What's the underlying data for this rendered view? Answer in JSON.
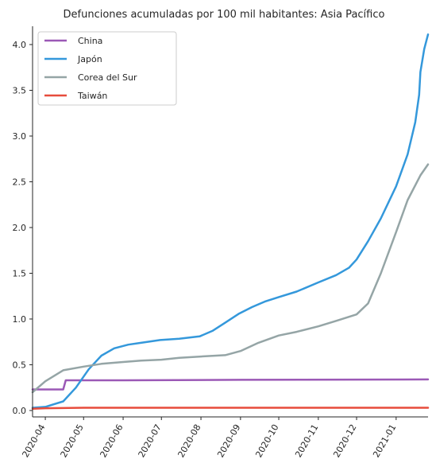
{
  "chart_data": {
    "type": "line",
    "title": "Defunciones acumuladas por 100 mil habitantes: Asia Pacífico",
    "xlabel": "",
    "ylabel": "",
    "x_ticks": [
      "2020-04",
      "2020-05",
      "2020-06",
      "2020-07",
      "2020-08",
      "2020-09",
      "2020-10",
      "2020-11",
      "2020-12",
      "2021-01"
    ],
    "x_range": [
      "2020-03-22",
      "2021-01-26"
    ],
    "y_ticks": [
      "0.0",
      "0.5",
      "1.0",
      "1.5",
      "2.0",
      "2.5",
      "3.0",
      "3.5",
      "4.0"
    ],
    "ylim": [
      -0.07,
      4.2
    ],
    "grid": false,
    "legend_position": "top-left",
    "series": [
      {
        "name": "China",
        "color": "#9b59b6",
        "points": [
          [
            "2020-03-22",
            0.23
          ],
          [
            "2020-04-15",
            0.23
          ],
          [
            "2020-04-17",
            0.33
          ],
          [
            "2020-06-01",
            0.33
          ],
          [
            "2020-09-01",
            0.335
          ],
          [
            "2020-12-01",
            0.338
          ],
          [
            "2021-01-26",
            0.34
          ]
        ]
      },
      {
        "name": "Japón",
        "color": "#3498db",
        "points": [
          [
            "2020-03-22",
            0.03
          ],
          [
            "2020-04-01",
            0.04
          ],
          [
            "2020-04-15",
            0.1
          ],
          [
            "2020-04-25",
            0.25
          ],
          [
            "2020-05-05",
            0.45
          ],
          [
            "2020-05-15",
            0.6
          ],
          [
            "2020-05-25",
            0.68
          ],
          [
            "2020-06-05",
            0.72
          ],
          [
            "2020-06-15",
            0.74
          ],
          [
            "2020-06-30",
            0.77
          ],
          [
            "2020-07-15",
            0.785
          ],
          [
            "2020-07-31",
            0.81
          ],
          [
            "2020-08-10",
            0.87
          ],
          [
            "2020-08-20",
            0.96
          ],
          [
            "2020-08-31",
            1.06
          ],
          [
            "2020-09-10",
            1.13
          ],
          [
            "2020-09-20",
            1.19
          ],
          [
            "2020-10-01",
            1.24
          ],
          [
            "2020-10-15",
            1.3
          ],
          [
            "2020-11-01",
            1.4
          ],
          [
            "2020-11-15",
            1.48
          ],
          [
            "2020-11-25",
            1.56
          ],
          [
            "2020-12-01",
            1.65
          ],
          [
            "2020-12-10",
            1.85
          ],
          [
            "2020-12-20",
            2.1
          ],
          [
            "2021-01-01",
            2.45
          ],
          [
            "2021-01-10",
            2.8
          ],
          [
            "2021-01-16",
            3.15
          ],
          [
            "2021-01-19",
            3.45
          ],
          [
            "2021-01-20",
            3.7
          ],
          [
            "2021-01-23",
            3.95
          ],
          [
            "2021-01-26",
            4.11
          ]
        ]
      },
      {
        "name": "Corea del Sur",
        "color": "#95a5a6",
        "points": [
          [
            "2020-03-22",
            0.2
          ],
          [
            "2020-04-01",
            0.32
          ],
          [
            "2020-04-15",
            0.44
          ],
          [
            "2020-05-01",
            0.48
          ],
          [
            "2020-05-15",
            0.51
          ],
          [
            "2020-06-01",
            0.53
          ],
          [
            "2020-06-15",
            0.545
          ],
          [
            "2020-07-01",
            0.555
          ],
          [
            "2020-07-15",
            0.575
          ],
          [
            "2020-08-01",
            0.59
          ],
          [
            "2020-08-20",
            0.605
          ],
          [
            "2020-09-01",
            0.65
          ],
          [
            "2020-09-15",
            0.74
          ],
          [
            "2020-10-01",
            0.82
          ],
          [
            "2020-10-15",
            0.86
          ],
          [
            "2020-11-01",
            0.92
          ],
          [
            "2020-11-15",
            0.98
          ],
          [
            "2020-12-01",
            1.05
          ],
          [
            "2020-12-10",
            1.17
          ],
          [
            "2020-12-20",
            1.5
          ],
          [
            "2021-01-01",
            1.95
          ],
          [
            "2021-01-10",
            2.3
          ],
          [
            "2021-01-20",
            2.57
          ],
          [
            "2021-01-26",
            2.69
          ]
        ]
      },
      {
        "name": "Taiwán",
        "color": "#e74c3c",
        "points": [
          [
            "2020-03-22",
            0.02
          ],
          [
            "2020-04-01",
            0.025
          ],
          [
            "2020-05-01",
            0.03
          ],
          [
            "2020-06-01",
            0.03
          ],
          [
            "2021-01-26",
            0.03
          ]
        ]
      }
    ]
  }
}
